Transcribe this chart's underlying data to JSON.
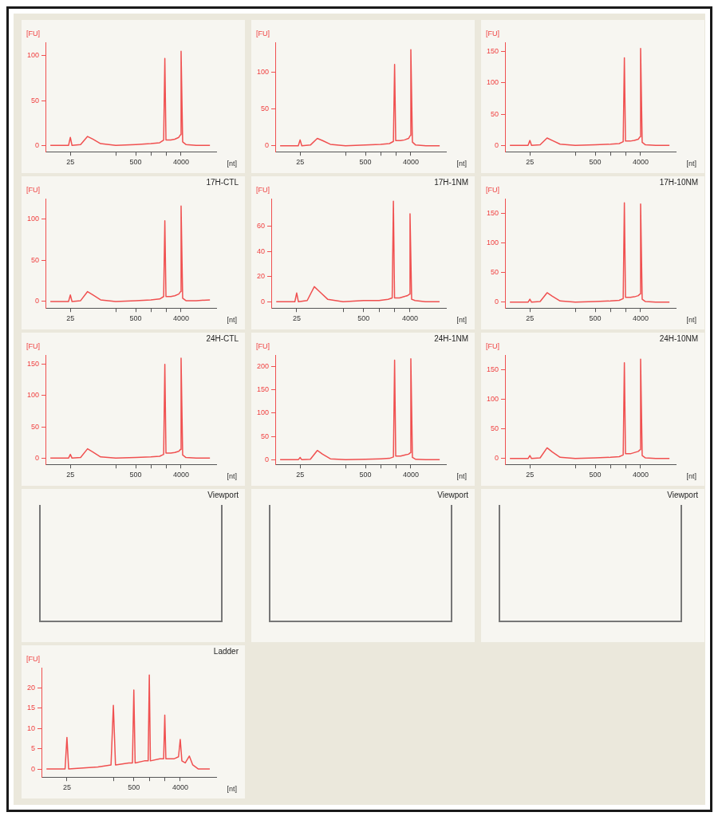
{
  "chart_data": [
    {
      "type": "line",
      "ylabel": "[FU]",
      "xlabel": "[nt]",
      "log": "x",
      "x": [
        10,
        20,
        23,
        25,
        27,
        40,
        55,
        70,
        100,
        200,
        500,
        1000,
        1500,
        1800,
        1900,
        2000,
        2500,
        3000,
        3600,
        3900,
        4000,
        4300,
        5000,
        8000,
        15000
      ],
      "xlim": [
        8,
        20000
      ],
      "xticks": [
        25,
        {
          "value": 200,
          "label": null
        },
        500,
        {
          "value": 1000,
          "label": null
        },
        {
          "value": 2000,
          "label": null
        },
        4000
      ],
      "ylim": [
        -7,
        115
      ],
      "yticks": [
        0,
        50,
        100
      ],
      "series": [
        {
          "color": "#f05050",
          "values": [
            0,
            0,
            0,
            9,
            0,
            1,
            10,
            7,
            2,
            0,
            1,
            2,
            3,
            6,
            97,
            6,
            6,
            7,
            9,
            12,
            105,
            4,
            1,
            0,
            0
          ]
        }
      ]
    },
    {
      "type": "line",
      "ylabel": "[FU]",
      "xlabel": "[nt]",
      "log": "x",
      "x": [
        10,
        20,
        23,
        25,
        27,
        40,
        55,
        70,
        100,
        200,
        500,
        1000,
        1500,
        1800,
        1900,
        2000,
        2500,
        3000,
        3600,
        3900,
        4000,
        4300,
        5000,
        8000,
        15000
      ],
      "xlim": [
        8,
        20000
      ],
      "xticks": [
        25,
        {
          "value": 200,
          "label": null
        },
        500,
        {
          "value": 1000,
          "label": null
        },
        {
          "value": 2000,
          "label": null
        },
        4000
      ],
      "ylim": [
        -8,
        140
      ],
      "yticks": [
        0,
        50,
        100
      ],
      "series": [
        {
          "color": "#f05050",
          "values": [
            0,
            0,
            0,
            8,
            0,
            1,
            10,
            7,
            2,
            0,
            1,
            2,
            3,
            6,
            110,
            7,
            7,
            8,
            10,
            14,
            130,
            5,
            1,
            0,
            0
          ]
        }
      ]
    },
    {
      "type": "line",
      "ylabel": "[FU]",
      "xlabel": "[nt]",
      "log": "x",
      "x": [
        10,
        20,
        23,
        25,
        27,
        40,
        55,
        70,
        100,
        200,
        500,
        1000,
        1500,
        1800,
        1900,
        2000,
        2500,
        3000,
        3600,
        3900,
        4000,
        4300,
        5000,
        8000,
        15000
      ],
      "xlim": [
        8,
        20000
      ],
      "xticks": [
        25,
        {
          "value": 200,
          "label": null
        },
        500,
        {
          "value": 1000,
          "label": null
        },
        {
          "value": 2000,
          "label": null
        },
        4000
      ],
      "ylim": [
        -10,
        165
      ],
      "yticks": [
        0,
        50,
        100,
        150
      ],
      "series": [
        {
          "color": "#f05050",
          "values": [
            0,
            0,
            0,
            8,
            0,
            1,
            12,
            8,
            2,
            0,
            1,
            2,
            3,
            6,
            140,
            7,
            7,
            8,
            10,
            14,
            155,
            5,
            1,
            0,
            0
          ]
        }
      ]
    },
    {
      "type": "line",
      "title": "17H-CTL",
      "ylabel": "[FU]",
      "xlabel": "[nt]",
      "log": "x",
      "x": [
        10,
        20,
        23,
        25,
        27,
        40,
        55,
        70,
        100,
        200,
        500,
        1000,
        1500,
        1800,
        1900,
        2000,
        2500,
        3000,
        3600,
        3900,
        4000,
        4300,
        5000,
        8000,
        15000
      ],
      "xlim": [
        8,
        20000
      ],
      "xticks": [
        25,
        {
          "value": 200,
          "label": null
        },
        500,
        {
          "value": 1000,
          "label": null
        },
        {
          "value": 2000,
          "label": null
        },
        4000
      ],
      "ylim": [
        -8,
        125
      ],
      "yticks": [
        0,
        50,
        100
      ],
      "series": [
        {
          "color": "#f05050",
          "values": [
            0,
            0,
            0,
            8,
            0,
            1,
            12,
            8,
            2,
            0,
            1,
            2,
            3,
            6,
            98,
            6,
            6,
            7,
            9,
            12,
            116,
            4,
            1,
            1,
            2
          ]
        }
      ]
    },
    {
      "type": "line",
      "title": "17H-1NM",
      "ylabel": "[FU]",
      "xlabel": "[nt]",
      "log": "x",
      "x": [
        10,
        20,
        23,
        25,
        27,
        40,
        55,
        70,
        100,
        200,
        500,
        1000,
        1500,
        1800,
        1900,
        2000,
        2500,
        3000,
        3600,
        3900,
        4000,
        4300,
        5000,
        8000,
        15000
      ],
      "xlim": [
        8,
        20000
      ],
      "xticks": [
        25,
        {
          "value": 200,
          "label": null
        },
        500,
        {
          "value": 1000,
          "label": null
        },
        {
          "value": 2000,
          "label": null
        },
        4000
      ],
      "ylim": [
        -5,
        82
      ],
      "yticks": [
        0,
        20,
        40,
        60
      ],
      "series": [
        {
          "color": "#f05050",
          "values": [
            0,
            0,
            0,
            7,
            0,
            1,
            12,
            8,
            2,
            0,
            1,
            1,
            2,
            3,
            80,
            3,
            3,
            4,
            5,
            6,
            70,
            2,
            1,
            0,
            0
          ]
        }
      ]
    },
    {
      "type": "line",
      "title": "17H-10NM",
      "ylabel": "[FU]",
      "xlabel": "[nt]",
      "log": "x",
      "x": [
        10,
        20,
        23,
        25,
        27,
        40,
        55,
        70,
        100,
        200,
        500,
        1000,
        1500,
        1800,
        1900,
        2000,
        2500,
        3000,
        3600,
        3900,
        4000,
        4300,
        5000,
        8000,
        15000
      ],
      "xlim": [
        8,
        20000
      ],
      "xticks": [
        25,
        {
          "value": 200,
          "label": null
        },
        500,
        {
          "value": 1000,
          "label": null
        },
        {
          "value": 2000,
          "label": null
        },
        4000
      ],
      "ylim": [
        -10,
        175
      ],
      "yticks": [
        0,
        50,
        100,
        150
      ],
      "series": [
        {
          "color": "#f05050",
          "values": [
            0,
            0,
            0,
            5,
            0,
            1,
            16,
            10,
            2,
            0,
            1,
            2,
            3,
            6,
            168,
            8,
            8,
            9,
            11,
            14,
            166,
            5,
            1,
            0,
            0
          ]
        }
      ]
    },
    {
      "type": "line",
      "title": "24H-CTL",
      "ylabel": "[FU]",
      "xlabel": "[nt]",
      "log": "x",
      "x": [
        10,
        20,
        23,
        25,
        27,
        40,
        55,
        70,
        100,
        200,
        500,
        1000,
        1500,
        1800,
        1900,
        2000,
        2500,
        3000,
        3600,
        3900,
        4000,
        4300,
        5000,
        8000,
        15000
      ],
      "xlim": [
        8,
        20000
      ],
      "xticks": [
        25,
        {
          "value": 200,
          "label": null
        },
        500,
        {
          "value": 1000,
          "label": null
        },
        {
          "value": 2000,
          "label": null
        },
        4000
      ],
      "ylim": [
        -10,
        165
      ],
      "yticks": [
        0,
        50,
        100,
        150
      ],
      "series": [
        {
          "color": "#f05050",
          "values": [
            0,
            0,
            0,
            6,
            0,
            1,
            15,
            10,
            2,
            0,
            1,
            2,
            3,
            6,
            150,
            8,
            8,
            9,
            11,
            14,
            160,
            5,
            1,
            0,
            0
          ]
        }
      ]
    },
    {
      "type": "line",
      "title": "24H-1NM",
      "ylabel": "[FU]",
      "xlabel": "[nt]",
      "log": "x",
      "x": [
        10,
        20,
        23,
        25,
        27,
        40,
        55,
        70,
        100,
        200,
        500,
        1000,
        1500,
        1800,
        1900,
        2000,
        2500,
        3000,
        3600,
        3900,
        4000,
        4300,
        5000,
        8000,
        15000
      ],
      "xlim": [
        8,
        20000
      ],
      "xticks": [
        25,
        {
          "value": 200,
          "label": null
        },
        500,
        {
          "value": 1000,
          "label": null
        },
        {
          "value": 2000,
          "label": null
        },
        4000
      ],
      "ylim": [
        -10,
        225
      ],
      "yticks": [
        0,
        50,
        100,
        150,
        200
      ],
      "series": [
        {
          "color": "#f05050",
          "values": [
            0,
            0,
            0,
            5,
            0,
            1,
            20,
            12,
            2,
            0,
            1,
            2,
            3,
            6,
            214,
            8,
            8,
            10,
            12,
            15,
            217,
            5,
            1,
            0,
            0
          ]
        }
      ]
    },
    {
      "type": "line",
      "title": "24H-10NM",
      "ylabel": "[FU]",
      "xlabel": "[nt]",
      "log": "x",
      "x": [
        10,
        20,
        23,
        25,
        27,
        40,
        55,
        70,
        100,
        200,
        500,
        1000,
        1500,
        1800,
        1900,
        2000,
        2500,
        3000,
        3600,
        3900,
        4000,
        4300,
        5000,
        8000,
        15000
      ],
      "xlim": [
        8,
        20000
      ],
      "xticks": [
        25,
        {
          "value": 200,
          "label": null
        },
        500,
        {
          "value": 1000,
          "label": null
        },
        {
          "value": 2000,
          "label": null
        },
        4000
      ],
      "ylim": [
        -10,
        175
      ],
      "yticks": [
        0,
        50,
        100,
        150
      ],
      "series": [
        {
          "color": "#f05050",
          "values": [
            0,
            0,
            0,
            5,
            0,
            1,
            18,
            11,
            2,
            0,
            1,
            2,
            3,
            6,
            162,
            8,
            8,
            10,
            12,
            15,
            168,
            5,
            1,
            0,
            0
          ]
        }
      ]
    },
    {
      "type": "other",
      "title": "Viewport"
    },
    {
      "type": "other",
      "title": "Viewport"
    },
    {
      "type": "other",
      "title": "Viewport"
    },
    {
      "type": "line",
      "title": "Ladder",
      "ylabel": "[FU]",
      "xlabel": "[nt]",
      "log": "x",
      "x": [
        10,
        20,
        23,
        25,
        27,
        100,
        180,
        200,
        220,
        400,
        470,
        500,
        530,
        800,
        950,
        1000,
        1050,
        1600,
        1900,
        2000,
        2100,
        3000,
        3700,
        4000,
        4300,
        5000,
        6000,
        7000,
        9000,
        15000
      ],
      "xlim": [
        8,
        20000
      ],
      "xticks": [
        25,
        {
          "value": 200,
          "label": null
        },
        500,
        {
          "value": 1000,
          "label": null
        },
        {
          "value": 2000,
          "label": null
        },
        4000
      ],
      "ylim": [
        -2,
        25
      ],
      "yticks": [
        0,
        5,
        10,
        15,
        20
      ],
      "series": [
        {
          "color": "#f05050",
          "values": [
            0,
            0,
            0,
            7.8,
            0,
            0.5,
            1,
            15.7,
            1,
            1.5,
            1.5,
            19.5,
            1.5,
            2,
            2,
            23.2,
            2,
            2.5,
            2.5,
            13.3,
            2.5,
            2.5,
            3,
            7.3,
            2,
            1.5,
            3.2,
            1,
            0,
            0
          ]
        }
      ]
    }
  ]
}
